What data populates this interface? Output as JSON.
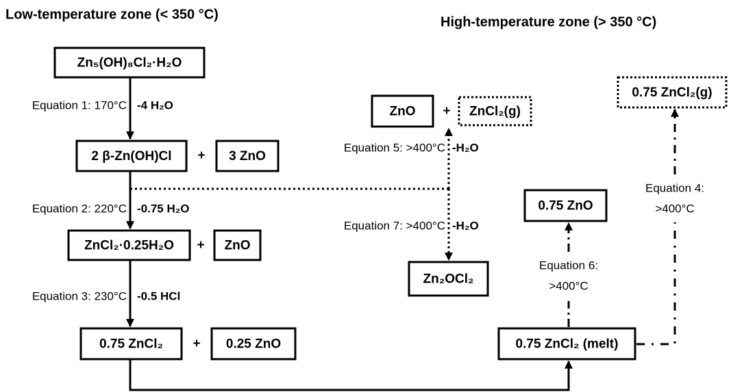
{
  "headings": {
    "low": "Low-temperature zone (< 350 °C)",
    "high": "High-temperature zone (> 350 °C)"
  },
  "nodes": [
    {
      "label": "Zn₅(OH)₈Cl₂·H₂O"
    },
    {
      "label": "2 β-Zn(OH)Cl"
    },
    {
      "label": "3 ZnO"
    },
    {
      "label": "ZnCl₂·0.25H₂O"
    },
    {
      "label": "ZnO"
    },
    {
      "label": "0.75 ZnCl₂"
    },
    {
      "label": "0.25 ZnO"
    },
    {
      "label": "ZnO"
    },
    {
      "label": "ZnCl₂(g)"
    },
    {
      "label": "0.75 ZnCl₂(g)"
    },
    {
      "label": "0.75 ZnO"
    },
    {
      "label": "Zn₂OCl₂"
    },
    {
      "label": "0.75 ZnCl₂ (melt)"
    }
  ],
  "plus_signs": [
    "+",
    "+",
    "+",
    "+"
  ],
  "edges": [
    {
      "label": "Equation 1: 170°C",
      "loss": "-4 H₂O"
    },
    {
      "label": "Equation 2: 220°C",
      "loss": "-0.75 H₂O"
    },
    {
      "label": "Equation 3: 230°C",
      "loss": "-0.5 HCl"
    },
    {
      "label": "Equation 5: >400°C",
      "loss": "-H₂O"
    },
    {
      "label": "Equation 7: >400°C",
      "loss": "-H₂O"
    },
    {
      "label": [
        "Equation 6:",
        ">400°C"
      ]
    },
    {
      "label": [
        "Equation 4:",
        ">400°C"
      ]
    }
  ]
}
